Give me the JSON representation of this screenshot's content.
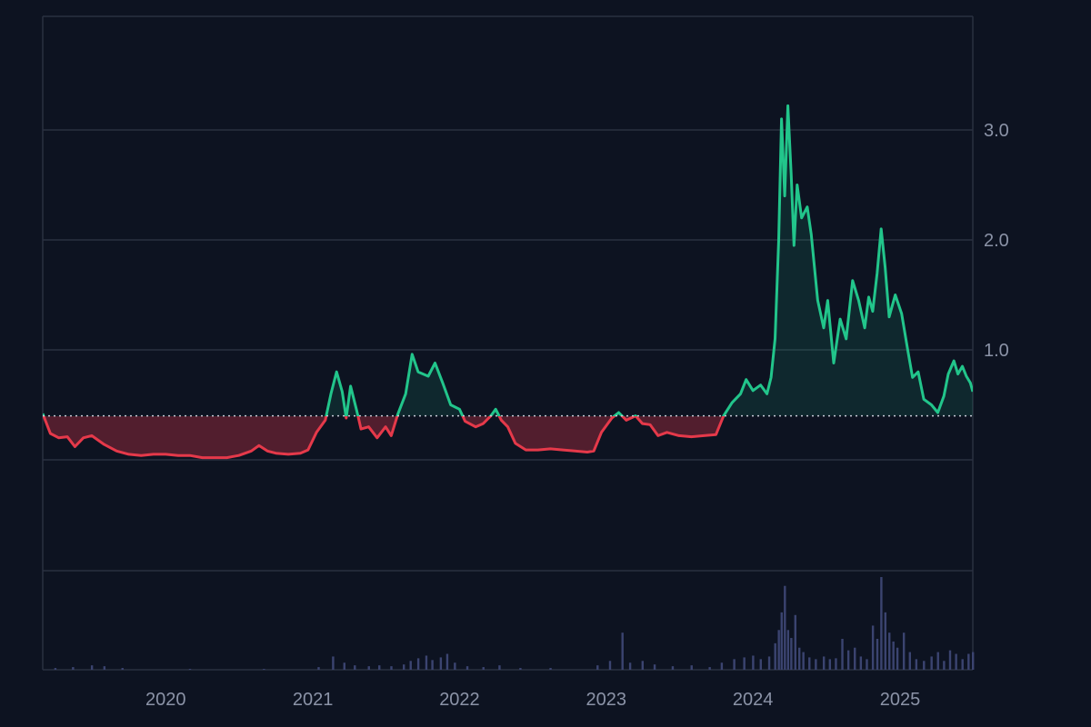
{
  "chart_data": {
    "type": "line",
    "title": "",
    "xlabel": "",
    "ylabel": "",
    "x_ticks": [
      "2020",
      "2021",
      "2022",
      "2023",
      "2024",
      "2025"
    ],
    "y_ticks": [
      "1.0",
      "2.0",
      "3.0"
    ],
    "y_tick_values": [
      1.0,
      2.0,
      3.0
    ],
    "y_gridlines": [
      0,
      1,
      2,
      3
    ],
    "xlim": [
      "2019-03-01",
      "2025-07-01"
    ],
    "ylim": [
      -1.0,
      4.0
    ],
    "baseline": 0.4,
    "colors": {
      "background": "#0d1321",
      "above": "#22c58b",
      "below": "#e5394a",
      "volume": "#3b4470",
      "grid": "#2a3140",
      "baseline": "#c8ccd6"
    },
    "series": [
      {
        "points": [
          [
            "2019-03-01",
            0.42
          ],
          [
            "2019-03-20",
            0.24
          ],
          [
            "2019-04-10",
            0.2
          ],
          [
            "2019-05-01",
            0.21
          ],
          [
            "2019-05-20",
            0.12
          ],
          [
            "2019-06-10",
            0.2
          ],
          [
            "2019-07-01",
            0.22
          ],
          [
            "2019-08-01",
            0.14
          ],
          [
            "2019-09-01",
            0.08
          ],
          [
            "2019-10-01",
            0.05
          ],
          [
            "2019-11-01",
            0.04
          ],
          [
            "2019-12-01",
            0.05
          ],
          [
            "2020-01-01",
            0.05
          ],
          [
            "2020-02-01",
            0.04
          ],
          [
            "2020-03-01",
            0.04
          ],
          [
            "2020-04-01",
            0.02
          ],
          [
            "2020-05-01",
            0.02
          ],
          [
            "2020-06-01",
            0.02
          ],
          [
            "2020-07-01",
            0.04
          ],
          [
            "2020-08-01",
            0.08
          ],
          [
            "2020-08-20",
            0.13
          ],
          [
            "2020-09-10",
            0.08
          ],
          [
            "2020-10-01",
            0.06
          ],
          [
            "2020-11-01",
            0.05
          ],
          [
            "2020-12-01",
            0.06
          ],
          [
            "2020-12-20",
            0.09
          ],
          [
            "2021-01-10",
            0.25
          ],
          [
            "2021-02-01",
            0.36
          ],
          [
            "2021-02-15",
            0.6
          ],
          [
            "2021-03-01",
            0.8
          ],
          [
            "2021-03-15",
            0.62
          ],
          [
            "2021-03-25",
            0.38
          ],
          [
            "2021-04-05",
            0.67
          ],
          [
            "2021-04-20",
            0.45
          ],
          [
            "2021-05-01",
            0.28
          ],
          [
            "2021-05-20",
            0.3
          ],
          [
            "2021-06-10",
            0.2
          ],
          [
            "2021-07-01",
            0.3
          ],
          [
            "2021-07-15",
            0.22
          ],
          [
            "2021-08-01",
            0.42
          ],
          [
            "2021-08-20",
            0.6
          ],
          [
            "2021-09-05",
            0.96
          ],
          [
            "2021-09-20",
            0.8
          ],
          [
            "2021-10-15",
            0.76
          ],
          [
            "2021-11-01",
            0.88
          ],
          [
            "2021-11-20",
            0.7
          ],
          [
            "2021-12-10",
            0.5
          ],
          [
            "2022-01-01",
            0.46
          ],
          [
            "2022-01-15",
            0.35
          ],
          [
            "2022-02-10",
            0.3
          ],
          [
            "2022-03-01",
            0.33
          ],
          [
            "2022-03-20",
            0.4
          ],
          [
            "2022-04-01",
            0.46
          ],
          [
            "2022-04-15",
            0.36
          ],
          [
            "2022-05-01",
            0.3
          ],
          [
            "2022-05-20",
            0.15
          ],
          [
            "2022-06-15",
            0.09
          ],
          [
            "2022-07-15",
            0.09
          ],
          [
            "2022-08-15",
            0.1
          ],
          [
            "2022-09-15",
            0.09
          ],
          [
            "2022-10-15",
            0.08
          ],
          [
            "2022-11-15",
            0.07
          ],
          [
            "2022-12-01",
            0.08
          ],
          [
            "2022-12-20",
            0.25
          ],
          [
            "2023-01-15",
            0.38
          ],
          [
            "2023-02-01",
            0.43
          ],
          [
            "2023-02-20",
            0.36
          ],
          [
            "2023-03-15",
            0.4
          ],
          [
            "2023-04-01",
            0.33
          ],
          [
            "2023-04-20",
            0.32
          ],
          [
            "2023-05-10",
            0.22
          ],
          [
            "2023-06-01",
            0.25
          ],
          [
            "2023-07-01",
            0.22
          ],
          [
            "2023-08-01",
            0.21
          ],
          [
            "2023-09-01",
            0.22
          ],
          [
            "2023-10-01",
            0.23
          ],
          [
            "2023-10-20",
            0.4
          ],
          [
            "2023-11-10",
            0.52
          ],
          [
            "2023-12-01",
            0.6
          ],
          [
            "2023-12-15",
            0.73
          ],
          [
            "2024-01-01",
            0.63
          ],
          [
            "2024-01-20",
            0.68
          ],
          [
            "2024-02-05",
            0.6
          ],
          [
            "2024-02-15",
            0.75
          ],
          [
            "2024-02-25",
            1.1
          ],
          [
            "2024-03-05",
            2.0
          ],
          [
            "2024-03-12",
            3.1
          ],
          [
            "2024-03-20",
            2.4
          ],
          [
            "2024-03-28",
            3.22
          ],
          [
            "2024-04-05",
            2.6
          ],
          [
            "2024-04-12",
            1.95
          ],
          [
            "2024-04-20",
            2.5
          ],
          [
            "2024-05-01",
            2.2
          ],
          [
            "2024-05-15",
            2.3
          ],
          [
            "2024-05-25",
            2.05
          ],
          [
            "2024-06-10",
            1.45
          ],
          [
            "2024-06-25",
            1.2
          ],
          [
            "2024-07-05",
            1.45
          ],
          [
            "2024-07-20",
            0.88
          ],
          [
            "2024-08-05",
            1.28
          ],
          [
            "2024-08-20",
            1.1
          ],
          [
            "2024-09-05",
            1.63
          ],
          [
            "2024-09-20",
            1.45
          ],
          [
            "2024-10-05",
            1.2
          ],
          [
            "2024-10-15",
            1.48
          ],
          [
            "2024-10-25",
            1.35
          ],
          [
            "2024-11-05",
            1.7
          ],
          [
            "2024-11-15",
            2.1
          ],
          [
            "2024-11-25",
            1.75
          ],
          [
            "2024-12-05",
            1.3
          ],
          [
            "2024-12-20",
            1.5
          ],
          [
            "2025-01-05",
            1.33
          ],
          [
            "2025-01-20",
            1.0
          ],
          [
            "2025-02-01",
            0.75
          ],
          [
            "2025-02-15",
            0.8
          ],
          [
            "2025-03-01",
            0.55
          ],
          [
            "2025-03-20",
            0.5
          ],
          [
            "2025-04-05",
            0.43
          ],
          [
            "2025-04-20",
            0.58
          ],
          [
            "2025-05-01",
            0.78
          ],
          [
            "2025-05-15",
            0.9
          ],
          [
            "2025-05-25",
            0.78
          ],
          [
            "2025-06-05",
            0.85
          ],
          [
            "2025-06-15",
            0.76
          ],
          [
            "2025-06-25",
            0.7
          ],
          [
            "2025-07-01",
            0.62
          ]
        ]
      }
    ],
    "volume": [
      [
        "2019-04-01",
        0.02
      ],
      [
        "2019-05-15",
        0.03
      ],
      [
        "2019-07-01",
        0.05
      ],
      [
        "2019-08-01",
        0.04
      ],
      [
        "2019-09-15",
        0.02
      ],
      [
        "2020-03-01",
        0.01
      ],
      [
        "2020-09-01",
        0.01
      ],
      [
        "2021-01-15",
        0.03
      ],
      [
        "2021-02-20",
        0.15
      ],
      [
        "2021-03-20",
        0.08
      ],
      [
        "2021-04-15",
        0.05
      ],
      [
        "2021-05-20",
        0.04
      ],
      [
        "2021-06-15",
        0.05
      ],
      [
        "2021-07-15",
        0.04
      ],
      [
        "2021-08-15",
        0.06
      ],
      [
        "2021-09-01",
        0.1
      ],
      [
        "2021-09-20",
        0.13
      ],
      [
        "2021-10-10",
        0.16
      ],
      [
        "2021-10-25",
        0.11
      ],
      [
        "2021-11-15",
        0.14
      ],
      [
        "2021-12-01",
        0.18
      ],
      [
        "2021-12-20",
        0.08
      ],
      [
        "2022-01-20",
        0.04
      ],
      [
        "2022-03-01",
        0.03
      ],
      [
        "2022-04-10",
        0.05
      ],
      [
        "2022-06-01",
        0.02
      ],
      [
        "2022-08-15",
        0.02
      ],
      [
        "2022-12-10",
        0.05
      ],
      [
        "2023-01-10",
        0.1
      ],
      [
        "2023-02-10",
        0.42
      ],
      [
        "2023-03-01",
        0.08
      ],
      [
        "2023-04-01",
        0.1
      ],
      [
        "2023-05-01",
        0.06
      ],
      [
        "2023-06-15",
        0.04
      ],
      [
        "2023-08-01",
        0.05
      ],
      [
        "2023-09-15",
        0.03
      ],
      [
        "2023-10-15",
        0.08
      ],
      [
        "2023-11-15",
        0.12
      ],
      [
        "2023-12-10",
        0.14
      ],
      [
        "2024-01-01",
        0.16
      ],
      [
        "2024-01-20",
        0.12
      ],
      [
        "2024-02-10",
        0.15
      ],
      [
        "2024-02-25",
        0.3
      ],
      [
        "2024-03-05",
        0.45
      ],
      [
        "2024-03-12",
        0.65
      ],
      [
        "2024-03-20",
        0.95
      ],
      [
        "2024-03-28",
        0.45
      ],
      [
        "2024-04-05",
        0.36
      ],
      [
        "2024-04-15",
        0.62
      ],
      [
        "2024-04-25",
        0.25
      ],
      [
        "2024-05-05",
        0.2
      ],
      [
        "2024-05-20",
        0.14
      ],
      [
        "2024-06-05",
        0.12
      ],
      [
        "2024-06-25",
        0.15
      ],
      [
        "2024-07-10",
        0.12
      ],
      [
        "2024-07-25",
        0.13
      ],
      [
        "2024-08-10",
        0.35
      ],
      [
        "2024-08-25",
        0.22
      ],
      [
        "2024-09-10",
        0.25
      ],
      [
        "2024-09-25",
        0.15
      ],
      [
        "2024-10-10",
        0.12
      ],
      [
        "2024-10-25",
        0.5
      ],
      [
        "2024-11-05",
        0.35
      ],
      [
        "2024-11-15",
        1.05
      ],
      [
        "2024-11-25",
        0.65
      ],
      [
        "2024-12-05",
        0.42
      ],
      [
        "2024-12-15",
        0.32
      ],
      [
        "2024-12-25",
        0.25
      ],
      [
        "2025-01-10",
        0.42
      ],
      [
        "2025-01-25",
        0.2
      ],
      [
        "2025-02-10",
        0.12
      ],
      [
        "2025-03-01",
        0.1
      ],
      [
        "2025-03-20",
        0.15
      ],
      [
        "2025-04-05",
        0.2
      ],
      [
        "2025-04-20",
        0.1
      ],
      [
        "2025-05-05",
        0.22
      ],
      [
        "2025-05-20",
        0.18
      ],
      [
        "2025-06-05",
        0.12
      ],
      [
        "2025-06-20",
        0.18
      ],
      [
        "2025-07-01",
        0.2
      ]
    ]
  }
}
